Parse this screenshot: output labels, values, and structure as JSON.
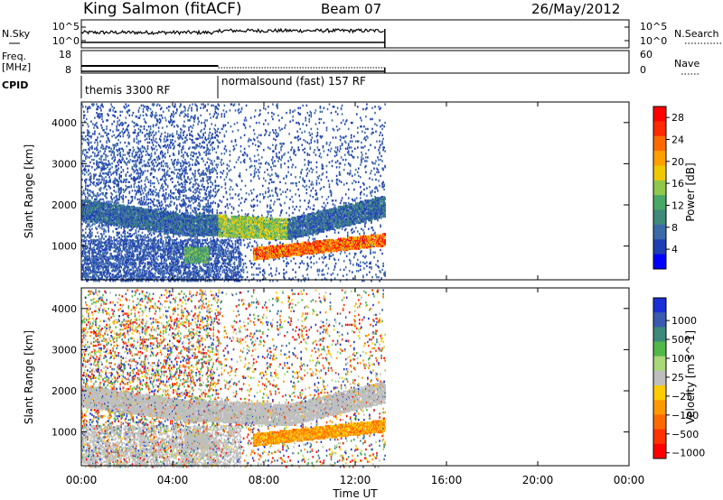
{
  "header": {
    "station": "King Salmon (fitACF)",
    "beam": "Beam 07",
    "date": "26/May/2012"
  },
  "labels": {
    "nsky": "N.Sky",
    "nsearch": "N.Search",
    "freq": "Freq.",
    "mhz": "[MHz]",
    "nave": "Nave",
    "cpid": "CPID",
    "pow_exp": "10^5",
    "pow_zero": "10^0"
  },
  "top_axes": {
    "noise_left_ticks": [
      "10^5",
      "10^0"
    ],
    "noise_right_ticks": [
      "10^5",
      "10^0"
    ],
    "freq_left_ticks": [
      "18",
      "8"
    ],
    "nave_right_ticks": [
      "60",
      "0"
    ]
  },
  "cpid_segments": [
    {
      "label": "themis 3300 RF",
      "start_hour": 0,
      "end_hour": 6
    },
    {
      "label": "normalsound (fast) 157 RF",
      "start_hour": 6,
      "end_hour": 13.3
    }
  ],
  "colors": {
    "power_scale": [
      "#0000ff",
      "#1e3fb4",
      "#3b6aa8",
      "#3f8a7a",
      "#4aa866",
      "#8fc84a",
      "#f0c800",
      "#ff9f00",
      "#ff6a00",
      "#ff2a00",
      "#ff0000"
    ],
    "velocity_scale": [
      "#1a2fd6",
      "#3a5ab0",
      "#3d8a7a",
      "#52b84a",
      "#a8d878",
      "#bebebe",
      "#ffcc00",
      "#ff9900",
      "#ff6a00",
      "#ff3300",
      "#ff0000"
    ]
  },
  "chart_data": [
    {
      "type": "heatmap",
      "name": "power-panel",
      "title": "",
      "xlabel": "Time UT",
      "ylabel": "Slant Range [km]",
      "xlim_hours": [
        0,
        24
      ],
      "ylim": [
        180,
        4500
      ],
      "x_ticks": [
        "00:00",
        "04:00",
        "08:00",
        "12:00",
        "16:00",
        "20:00",
        "00:00"
      ],
      "y_ticks": [
        1000,
        2000,
        3000,
        4000
      ],
      "colorbar": {
        "label": "Power [dB]",
        "ticks": [
          4,
          8,
          12,
          16,
          20,
          24,
          28
        ],
        "range": [
          0,
          30
        ]
      },
      "features": [
        {
          "desc": "ionospheric band",
          "start_hour": 0,
          "end_hour": 13.3,
          "range_km": [
            1200,
            2050
          ],
          "value_db": 12
        },
        {
          "desc": "near-range echo",
          "start_hour": 4.5,
          "end_hour": 5.5,
          "range_km": [
            600,
            1000
          ],
          "value_db": 10
        },
        {
          "desc": "strong E-region echo",
          "start_hour": 7.5,
          "end_hour": 13.3,
          "range_km": [
            700,
            1200
          ],
          "value_db": 26
        }
      ]
    },
    {
      "type": "heatmap",
      "name": "velocity-panel",
      "title": "",
      "xlabel": "Time UT",
      "ylabel": "Slant Range [km]",
      "xlim_hours": [
        0,
        24
      ],
      "ylim": [
        180,
        4500
      ],
      "x_ticks": [
        "00:00",
        "04:00",
        "08:00",
        "12:00",
        "16:00",
        "20:00",
        "00:00"
      ],
      "y_ticks": [
        1000,
        2000,
        3000,
        4000
      ],
      "colorbar": {
        "label": "Velocity [m s^-1]",
        "ticks": [
          "1000",
          "500",
          "100",
          "25",
          "−25",
          "−100",
          "−500",
          "−1000"
        ],
        "range": [
          -1000,
          1000
        ]
      },
      "features": [
        {
          "desc": "ground scatter band",
          "start_hour": 0,
          "end_hour": 13.3,
          "range_km": [
            1200,
            2050
          ],
          "value_ms": 0
        },
        {
          "desc": "receding flow",
          "start_hour": 7.5,
          "end_hour": 13.3,
          "range_km": [
            700,
            1200
          ],
          "value_ms": -200
        }
      ]
    }
  ]
}
